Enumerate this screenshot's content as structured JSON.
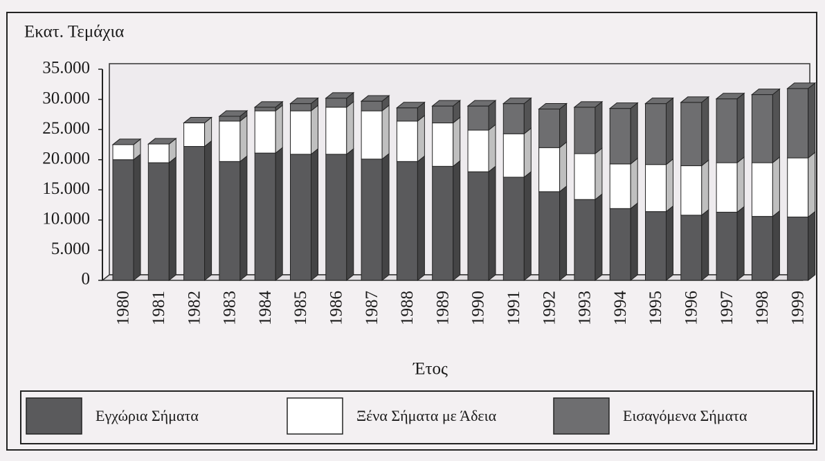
{
  "chart_data": {
    "type": "stacked_bar_3d",
    "y_label": "Εκατ. Τεμάχια",
    "x_label": "Έτος",
    "categories": [
      "1980",
      "1981",
      "1982",
      "1983",
      "1984",
      "1985",
      "1986",
      "1987",
      "1988",
      "1989",
      "1990",
      "1991",
      "1992",
      "1993",
      "1994",
      "1995",
      "1996",
      "1997",
      "1998",
      "1999"
    ],
    "series": [
      {
        "name": "Εγχώρια Σήματα",
        "color": "#5a5a5c",
        "values": [
          20000,
          19500,
          22200,
          19700,
          21100,
          20900,
          20900,
          20100,
          19700,
          18900,
          18000,
          17100,
          14700,
          13400,
          11900,
          11400,
          10800,
          11300,
          10600,
          10500
        ]
      },
      {
        "name": "Ξένα Σήματα με Άδεια",
        "color": "#ffffff",
        "values": [
          2500,
          3100,
          3900,
          6700,
          7000,
          7200,
          7800,
          8000,
          6700,
          7200,
          6900,
          7200,
          7300,
          7600,
          7400,
          7800,
          8200,
          8200,
          8900,
          9800
        ]
      },
      {
        "name": "Εισαγόμενα Σήματα",
        "color": "#6e6e70",
        "values": [
          0,
          0,
          0,
          800,
          600,
          1200,
          1500,
          1600,
          2200,
          2800,
          4000,
          5000,
          6400,
          7700,
          9200,
          10100,
          10500,
          10600,
          11300,
          11500
        ]
      }
    ],
    "ylim": [
      0,
      35000
    ],
    "yticks": [
      0,
      {
        "value": 5000,
        "label": "5.000"
      },
      {
        "value": 10000,
        "label": "10.000"
      },
      {
        "value": 15000,
        "label": "15.000"
      },
      {
        "value": 20000,
        "label": "20.000"
      },
      {
        "value": 25000,
        "label": "25.000"
      },
      {
        "value": 30000,
        "label": "30.000"
      },
      {
        "value": 35000,
        "label": "35.000"
      }
    ],
    "grid": false
  }
}
